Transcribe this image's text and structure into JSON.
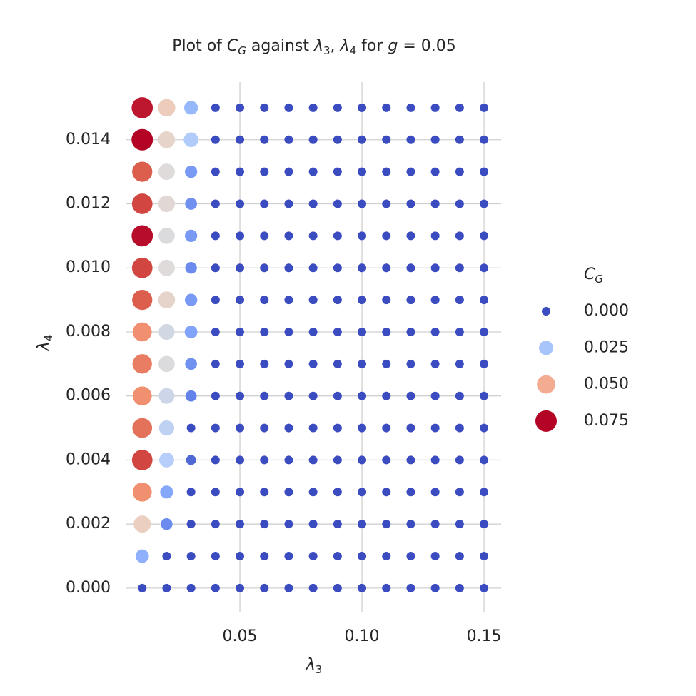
{
  "chart_data": {
    "type": "scatter",
    "title": [
      "Plot of ",
      "C",
      "G",
      " against ",
      "λ",
      "3",
      ", ",
      "λ",
      "4",
      " for ",
      "g",
      " = 0.05"
    ],
    "x_label": [
      "λ",
      "3"
    ],
    "y_label": [
      "λ",
      "4"
    ],
    "x": [
      0.01,
      0.02,
      0.03,
      0.04,
      0.05,
      0.06,
      0.07,
      0.08,
      0.09,
      0.1,
      0.11,
      0.12,
      0.13,
      0.14,
      0.15
    ],
    "y": [
      0,
      0.001,
      0.002,
      0.003,
      0.004,
      0.005,
      0.006,
      0.007,
      0.008,
      0.009,
      0.01,
      0.011,
      0.012,
      0.013,
      0.014,
      0.015
    ],
    "values": [
      [
        0,
        0,
        0,
        0,
        0,
        0,
        0,
        0,
        0,
        0,
        0,
        0,
        0,
        0,
        0
      ],
      [
        0.02,
        0,
        0,
        0,
        0,
        0,
        0,
        0,
        0,
        0,
        0,
        0,
        0,
        0,
        0
      ],
      [
        0.042,
        0.012,
        0,
        0,
        0,
        0,
        0,
        0,
        0,
        0,
        0,
        0,
        0,
        0,
        0
      ],
      [
        0.055,
        0.018,
        0,
        0,
        0,
        0,
        0,
        0,
        0,
        0,
        0,
        0,
        0,
        0,
        0
      ],
      [
        0.066,
        0.028,
        0.005,
        0,
        0,
        0,
        0,
        0,
        0,
        0,
        0,
        0,
        0,
        0,
        0
      ],
      [
        0.06,
        0.03,
        0,
        0,
        0,
        0,
        0,
        0,
        0,
        0,
        0,
        0,
        0,
        0,
        0
      ],
      [
        0.055,
        0.033,
        0.01,
        0,
        0,
        0,
        0,
        0,
        0,
        0,
        0,
        0,
        0,
        0,
        0
      ],
      [
        0.058,
        0.036,
        0.013,
        0,
        0,
        0,
        0,
        0,
        0,
        0,
        0,
        0,
        0,
        0,
        0
      ],
      [
        0.055,
        0.034,
        0.017,
        0,
        0,
        0,
        0,
        0,
        0,
        0,
        0,
        0,
        0,
        0,
        0
      ],
      [
        0.063,
        0.04,
        0.015,
        0,
        0,
        0,
        0,
        0,
        0,
        0,
        0,
        0,
        0,
        0,
        0
      ],
      [
        0.066,
        0.037,
        0.012,
        0,
        0,
        0,
        0,
        0,
        0,
        0,
        0,
        0,
        0,
        0,
        0
      ],
      [
        0.072,
        0.036,
        0.015,
        0,
        0,
        0,
        0,
        0,
        0,
        0,
        0,
        0,
        0,
        0,
        0
      ],
      [
        0.066,
        0.038,
        0.013,
        0,
        0,
        0,
        0,
        0,
        0,
        0,
        0,
        0,
        0,
        0,
        0
      ],
      [
        0.063,
        0.037,
        0.015,
        0,
        0,
        0,
        0,
        0,
        0,
        0,
        0,
        0,
        0,
        0,
        0
      ],
      [
        0.073,
        0.04,
        0.027,
        0,
        0,
        0,
        0,
        0,
        0,
        0,
        0,
        0,
        0,
        0,
        0
      ],
      [
        0.071,
        0.043,
        0.022,
        0,
        0,
        0,
        0,
        0,
        0,
        0,
        0,
        0,
        0,
        0,
        0
      ]
    ],
    "colormap": [
      "#3b4cc0",
      "#5f7fe8",
      "#86a9fc",
      "#b3cdfb",
      "#dddcdc",
      "#f4c6af",
      "#f29072",
      "#da5a49",
      "#b40426"
    ],
    "legend_title": [
      "C",
      "G"
    ],
    "legend": [
      {
        "value": 0,
        "label": "0.000"
      },
      {
        "value": 0.025,
        "label": "0.025"
      },
      {
        "value": 0.05,
        "label": "0.050"
      },
      {
        "value": 0.075,
        "label": "0.075"
      }
    ],
    "xlim": [
      0.0035,
      0.157
    ],
    "ylim": [
      -0.00076,
      0.0158
    ],
    "xticks": [
      0.05,
      {
        "value": 0.1,
        "label": "0.10"
      },
      0.15
    ],
    "yticks": [
      {
        "value": 0,
        "label": "0.000"
      },
      {
        "value": 0.002,
        "label": "0.002"
      },
      {
        "value": 0.004,
        "label": "0.004"
      },
      {
        "value": 0.006,
        "label": "0.006"
      },
      {
        "value": 0.008,
        "label": "0.008"
      },
      {
        "value": 0.01,
        "label": "0.010"
      },
      {
        "value": 0.012,
        "label": "0.012"
      },
      {
        "value": 0.014,
        "label": "0.014"
      }
    ],
    "grid": true
  }
}
